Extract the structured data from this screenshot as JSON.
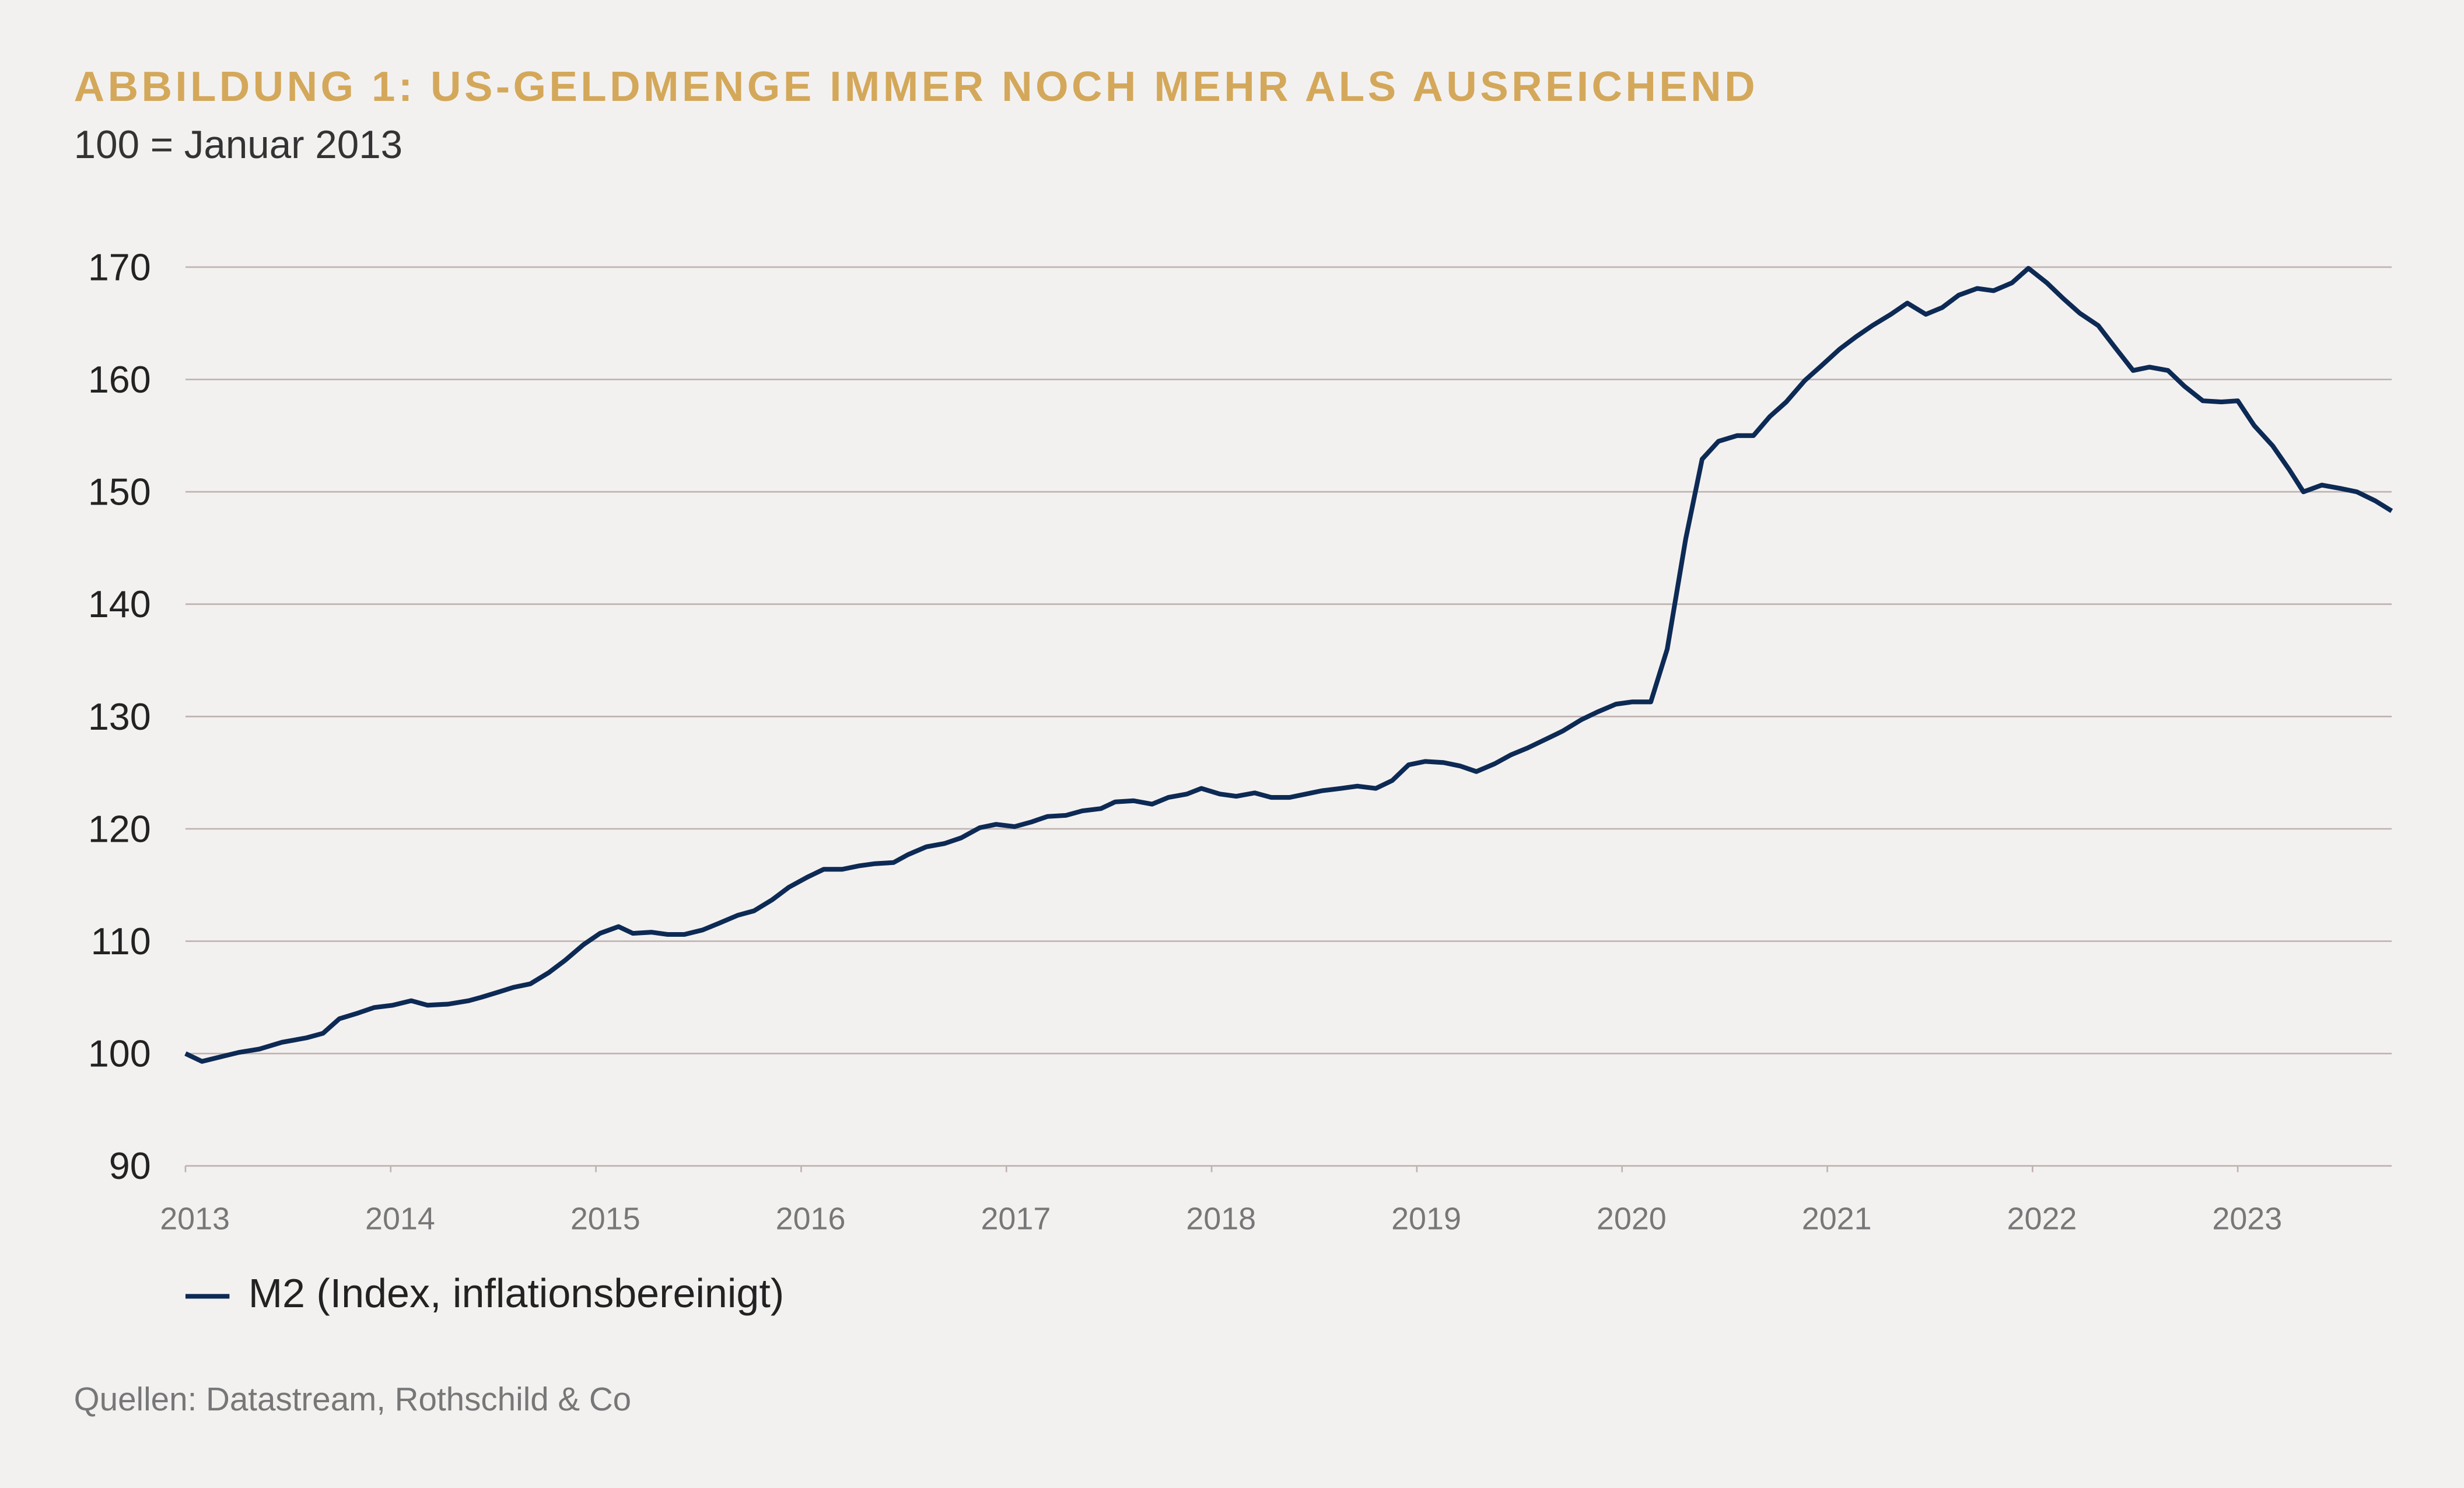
{
  "chart_data": {
    "type": "line",
    "title": "ABBILDUNG 1: US-GELDMENGE IMMER NOCH MEHR ALS AUSREICHEND",
    "subtitle": "100 = Januar 2013",
    "source": "Quellen: Datastream, Rothschild & Co",
    "x": [
      2013.0,
      2013.08,
      2013.17,
      2013.26,
      2013.36,
      2013.47,
      2013.59,
      2013.67,
      2013.75,
      2013.84,
      2013.92,
      2014.01,
      2014.1,
      2014.18,
      2014.28,
      2014.38,
      2014.44,
      2014.53,
      2014.6,
      2014.68,
      2014.77,
      2014.85,
      2014.94,
      2015.02,
      2015.11,
      2015.18,
      2015.27,
      2015.35,
      2015.43,
      2015.52,
      2015.6,
      2015.69,
      2015.77,
      2015.86,
      2015.94,
      2016.03,
      2016.11,
      2016.2,
      2016.28,
      2016.36,
      2016.45,
      2016.52,
      2016.61,
      2016.7,
      2016.78,
      2016.87,
      2016.95,
      2017.04,
      2017.12,
      2017.2,
      2017.29,
      2017.37,
      2017.46,
      2017.53,
      2017.62,
      2017.71,
      2017.79,
      2017.88,
      2017.95,
      2018.04,
      2018.12,
      2018.21,
      2018.29,
      2018.38,
      2018.46,
      2018.54,
      2018.63,
      2018.71,
      2018.8,
      2018.88,
      2018.96,
      2019.04,
      2019.13,
      2019.21,
      2019.29,
      2019.38,
      2019.46,
      2019.54,
      2019.62,
      2019.71,
      2019.8,
      2019.88,
      2019.97,
      2020.05,
      2020.14,
      2020.22,
      2020.31,
      2020.39,
      2020.47,
      2020.56,
      2020.64,
      2020.72,
      2020.8,
      2020.89,
      2020.97,
      2021.06,
      2021.14,
      2021.22,
      2021.31,
      2021.39,
      2021.48,
      2021.56,
      2021.64,
      2021.73,
      2021.81,
      2021.9,
      2021.98,
      2022.07,
      2022.15,
      2022.23,
      2022.32,
      2022.4,
      2022.49,
      2022.57,
      2022.66,
      2022.74,
      2022.83,
      2022.92,
      2023.0,
      2023.08,
      2023.17,
      2023.25,
      2023.32,
      2023.41,
      2023.5,
      2023.58,
      2023.67,
      2023.75
    ],
    "series": [
      {
        "name": "M2 (Index, inflationsbereinigt)",
        "color": "#0d2a55",
        "values": [
          100,
          99.3,
          99.7,
          100.1,
          100.4,
          101,
          101.4,
          101.8,
          103.1,
          103.6,
          104.1,
          104.3,
          104.7,
          104.3,
          104.4,
          104.7,
          105,
          105.5,
          105.9,
          106.2,
          107.2,
          108.3,
          109.7,
          110.7,
          111.3,
          110.7,
          110.8,
          110.6,
          110.6,
          111,
          111.6,
          112.3,
          112.7,
          113.7,
          114.8,
          115.7,
          116.4,
          116.4,
          116.7,
          116.9,
          117,
          117.7,
          118.4,
          118.7,
          119.2,
          120.1,
          120.4,
          120.2,
          120.6,
          121.1,
          121.2,
          121.6,
          121.8,
          122.4,
          122.5,
          122.2,
          122.8,
          123.1,
          123.6,
          123.1,
          122.9,
          123.2,
          122.8,
          122.8,
          123.1,
          123.4,
          123.6,
          123.8,
          123.6,
          124.3,
          125.7,
          126,
          125.9,
          125.6,
          125.1,
          125.8,
          126.6,
          127.2,
          127.9,
          128.7,
          129.7,
          130.4,
          131.1,
          131.3,
          131.3,
          136,
          145.8,
          152.9,
          154.5,
          155,
          155,
          156.7,
          158,
          159.9,
          161.2,
          162.7,
          163.8,
          164.8,
          165.8,
          166.8,
          165.8,
          166.4,
          167.5,
          168.1,
          167.9,
          168.6,
          169.9,
          168.6,
          167.2,
          165.9,
          164.8,
          162.9,
          160.8,
          161.1,
          160.8,
          159.4,
          158.1,
          158,
          158.1,
          155.9,
          154.1,
          152,
          150,
          150.6,
          150.3,
          150,
          149.2,
          148.3
        ]
      }
    ],
    "xlim": [
      2013,
      2023.75
    ],
    "xticks": [
      2013,
      2014,
      2015,
      2016,
      2017,
      2018,
      2019,
      2020,
      2021,
      2022,
      2023
    ],
    "ylim": [
      90,
      170
    ],
    "yticks": [
      90,
      100,
      110,
      120,
      130,
      140,
      150,
      160,
      170
    ],
    "grid": true
  }
}
